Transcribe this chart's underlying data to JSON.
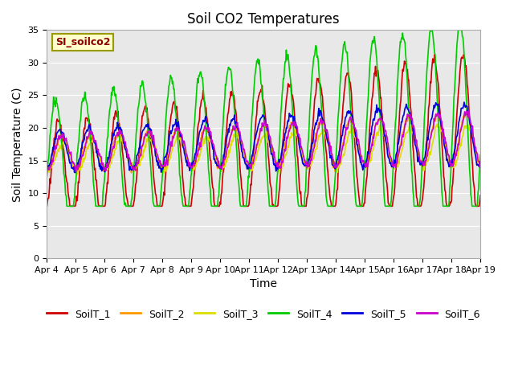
{
  "title": "Soil CO2 Temperatures",
  "xlabel": "Time",
  "ylabel": "Soil Temperature (C)",
  "ylim": [
    0,
    35
  ],
  "annotation_text": "SI_soilco2",
  "plot_bg_color": "#e8e8e8",
  "fig_bg_color": "#ffffff",
  "series": {
    "SoilT_1": {
      "color": "#cc0000",
      "linewidth": 1.2
    },
    "SoilT_2": {
      "color": "#ff9900",
      "linewidth": 1.2
    },
    "SoilT_3": {
      "color": "#dddd00",
      "linewidth": 1.2
    },
    "SoilT_4": {
      "color": "#00cc00",
      "linewidth": 1.2
    },
    "SoilT_5": {
      "color": "#0000dd",
      "linewidth": 1.2
    },
    "SoilT_6": {
      "color": "#cc00cc",
      "linewidth": 1.2
    }
  },
  "x_tick_labels": [
    "Apr 4",
    "Apr 5",
    "Apr 6",
    "Apr 7",
    "Apr 8",
    "Apr 9",
    "Apr 10",
    "Apr 11",
    "Apr 12",
    "Apr 13",
    "Apr 14",
    "Apr 15",
    "Apr 16",
    "Apr 17",
    "Apr 18",
    "Apr 19"
  ],
  "grid_color": "#ffffff",
  "title_fontsize": 12,
  "axis_fontsize": 10,
  "tick_fontsize": 8,
  "legend_fontsize": 9,
  "n_days": 15,
  "points_per_day": 48
}
